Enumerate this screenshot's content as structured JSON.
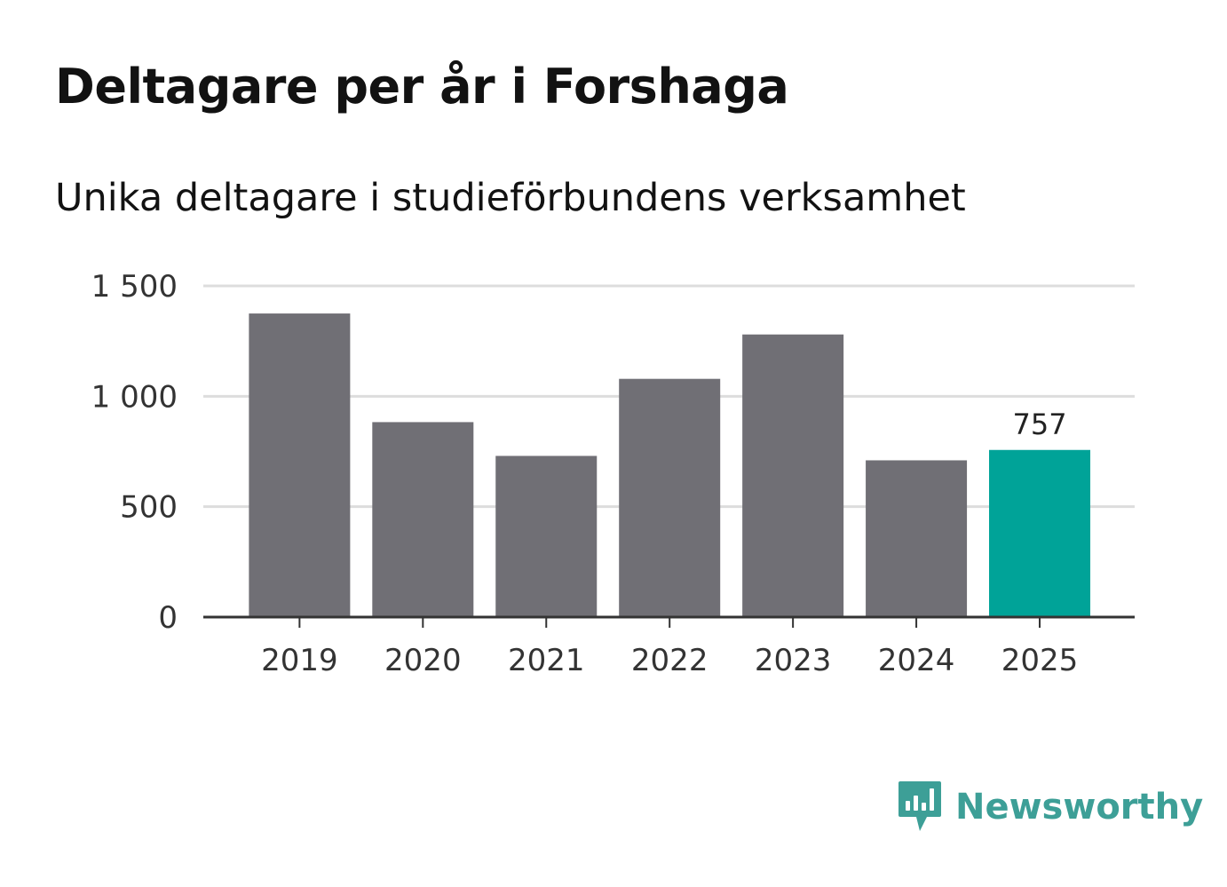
{
  "header": {
    "title": "Deltagare per år i Forshaga",
    "subtitle": "Unika deltagare i studieförbundens verksamhet"
  },
  "brand": {
    "name": "Newsworthy",
    "color": "#3d9f97",
    "icon": "newsworthy-logo-icon"
  },
  "colors": {
    "bar_default": "#706f75",
    "bar_highlight": "#00a398",
    "grid": "#dddddd",
    "axis": "#333333"
  },
  "chart_data": {
    "type": "bar",
    "title": "Deltagare per år i Forshaga",
    "subtitle": "Unika deltagare i studieförbundens verksamhet",
    "xlabel": "",
    "ylabel": "",
    "categories": [
      "2019",
      "2020",
      "2021",
      "2022",
      "2023",
      "2024",
      "2025"
    ],
    "values": [
      1375,
      883,
      730,
      1079,
      1280,
      710,
      757
    ],
    "highlight_index": 6,
    "data_labels": [
      {
        "index": 6,
        "text": "757"
      }
    ],
    "ylim": [
      0,
      1500
    ],
    "yticks": [
      0,
      500,
      1000,
      1500
    ],
    "ytick_labels": [
      "0",
      "500",
      "1 000",
      "1 500"
    ],
    "grid": true,
    "legend": "none"
  }
}
